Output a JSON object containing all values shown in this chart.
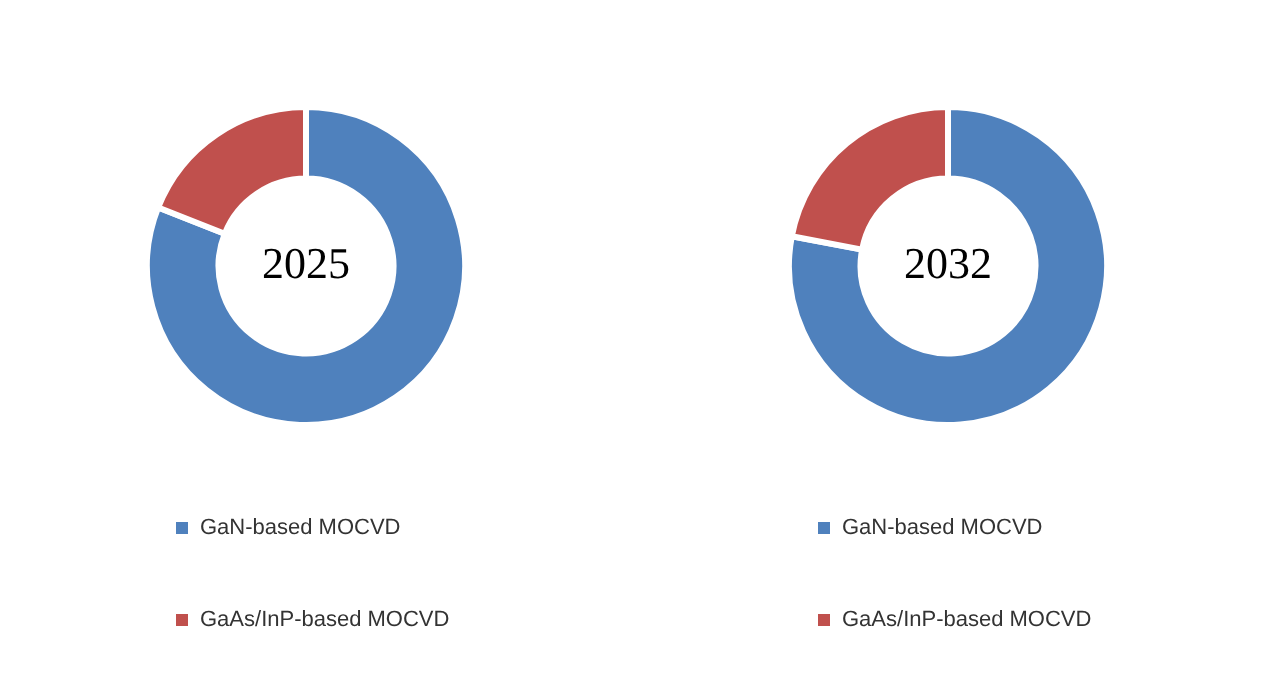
{
  "chart_data": [
    {
      "type": "donut",
      "title": "2025",
      "categories": [
        "GaN-based MOCVD",
        "GaAs/InP-based MOCVD"
      ],
      "values": [
        81,
        19
      ],
      "colors": [
        "#4f81bd",
        "#c0504d"
      ],
      "legend": "bottom"
    },
    {
      "type": "donut",
      "title": "2032",
      "categories": [
        "GaN-based MOCVD",
        "GaAs/InP-based MOCVD"
      ],
      "values": [
        78,
        22
      ],
      "colors": [
        "#4f81bd",
        "#c0504d"
      ],
      "legend": "bottom"
    }
  ]
}
